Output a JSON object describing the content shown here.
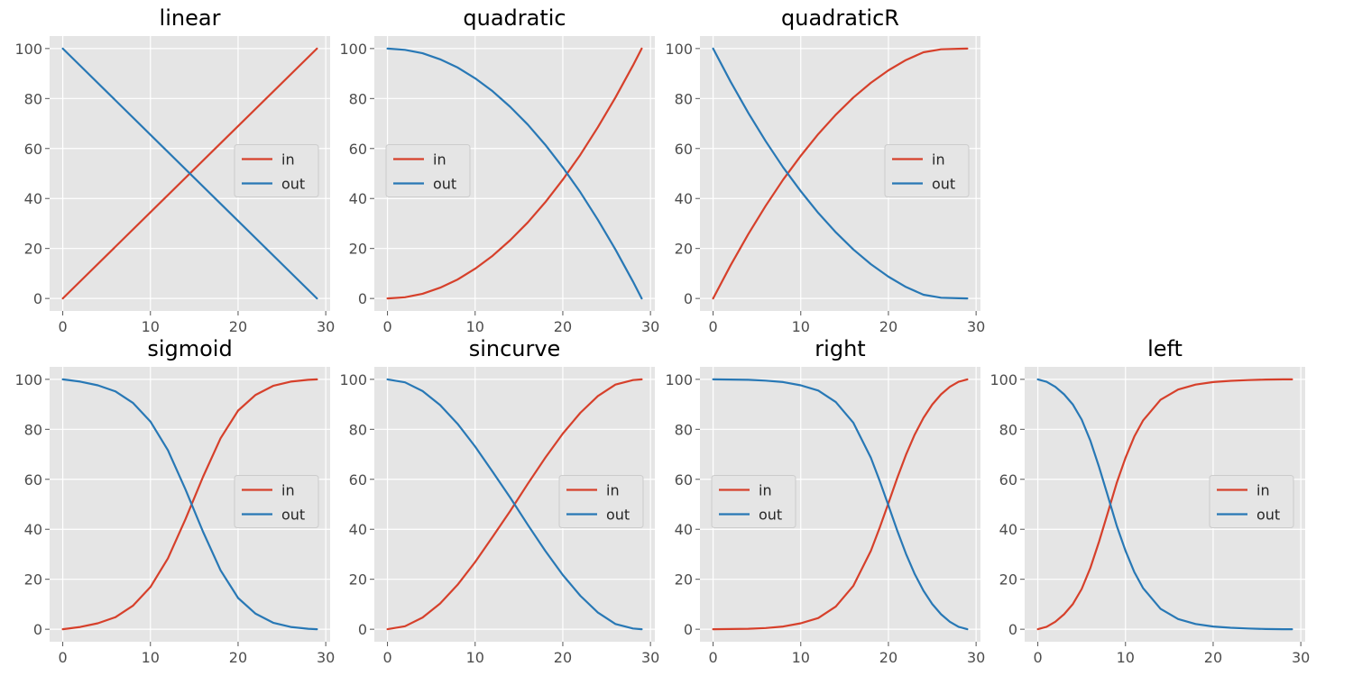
{
  "figure": {
    "colors": {
      "in": "#d6402b",
      "out": "#2878b5",
      "background": "#e5e5e5",
      "grid": "#ffffff"
    }
  },
  "chart_data": [
    {
      "type": "line",
      "title": "linear",
      "xlim": [
        -1.5,
        30.5
      ],
      "ylim": [
        -5,
        105
      ],
      "xticks": [
        0,
        10,
        20,
        30
      ],
      "yticks": [
        0,
        20,
        40,
        60,
        80,
        100
      ],
      "grid": true,
      "legend_position": "center-right",
      "series": [
        {
          "name": "in",
          "color": "#d6402b",
          "x": [
            0,
            29
          ],
          "y": [
            0,
            100
          ]
        },
        {
          "name": "out",
          "color": "#2878b5",
          "x": [
            0,
            29
          ],
          "y": [
            100,
            0
          ]
        }
      ]
    },
    {
      "type": "line",
      "title": "quadratic",
      "xlim": [
        -1.5,
        30.5
      ],
      "ylim": [
        -5,
        105
      ],
      "xticks": [
        0,
        10,
        20,
        30
      ],
      "yticks": [
        0,
        20,
        40,
        60,
        80,
        100
      ],
      "grid": true,
      "legend_position": "center-left",
      "series": [
        {
          "name": "in",
          "color": "#d6402b",
          "x": [
            0,
            2,
            4,
            6,
            8,
            10,
            12,
            14,
            16,
            18,
            20,
            22,
            24,
            26,
            28,
            29
          ],
          "y": [
            0,
            0.5,
            1.9,
            4.3,
            7.6,
            11.9,
            17.1,
            23.3,
            30.4,
            38.5,
            47.6,
            57.5,
            68.5,
            80.4,
            93.2,
            100
          ]
        },
        {
          "name": "out",
          "color": "#2878b5",
          "x": [
            0,
            2,
            4,
            6,
            8,
            10,
            12,
            14,
            16,
            18,
            20,
            22,
            24,
            26,
            28,
            29
          ],
          "y": [
            100,
            99.5,
            98.1,
            95.7,
            92.4,
            88.1,
            82.9,
            76.7,
            69.6,
            61.5,
            52.4,
            42.5,
            31.5,
            19.6,
            6.8,
            0
          ]
        }
      ]
    },
    {
      "type": "line",
      "title": "quadraticR",
      "xlim": [
        -1.5,
        30.5
      ],
      "ylim": [
        -5,
        105
      ],
      "xticks": [
        0,
        10,
        20,
        30
      ],
      "yticks": [
        0,
        20,
        40,
        60,
        80,
        100
      ],
      "grid": true,
      "legend_position": "center-right",
      "series": [
        {
          "name": "in",
          "color": "#d6402b",
          "x": [
            0,
            2,
            4,
            6,
            8,
            10,
            12,
            14,
            16,
            18,
            20,
            22,
            24,
            26,
            28,
            29
          ],
          "y": [
            0,
            13.3,
            25.7,
            37.1,
            47.6,
            57.1,
            65.8,
            73.5,
            80.4,
            86.3,
            91.3,
            95.4,
            98.5,
            99.7,
            99.9,
            100
          ]
        },
        {
          "name": "out",
          "color": "#2878b5",
          "x": [
            0,
            2,
            4,
            6,
            8,
            10,
            12,
            14,
            16,
            18,
            20,
            22,
            24,
            26,
            28,
            29
          ],
          "y": [
            100,
            86.7,
            74.3,
            62.9,
            52.4,
            42.9,
            34.2,
            26.5,
            19.6,
            13.7,
            8.7,
            4.6,
            1.5,
            0.3,
            0.1,
            0
          ]
        }
      ]
    },
    {
      "type": "line",
      "title": "sigmoid",
      "xlim": [
        -1.5,
        30.5
      ],
      "ylim": [
        -5,
        105
      ],
      "xticks": [
        0,
        10,
        20,
        30
      ],
      "yticks": [
        0,
        20,
        40,
        60,
        80,
        100
      ],
      "grid": true,
      "legend_position": "center-right",
      "series": [
        {
          "name": "in",
          "color": "#d6402b",
          "x": [
            0,
            2,
            4,
            6,
            8,
            10,
            12,
            14,
            16,
            18,
            20,
            22,
            24,
            26,
            28,
            29
          ],
          "y": [
            0,
            0.9,
            2.4,
            4.8,
            9.4,
            16.9,
            28.4,
            44,
            61,
            76.4,
            87.5,
            93.8,
            97.4,
            99.1,
            99.8,
            100
          ]
        },
        {
          "name": "out",
          "color": "#2878b5",
          "x": [
            0,
            2,
            4,
            6,
            8,
            10,
            12,
            14,
            16,
            18,
            20,
            22,
            24,
            26,
            28,
            29
          ],
          "y": [
            100,
            99.1,
            97.6,
            95.2,
            90.6,
            83.1,
            71.6,
            56,
            39,
            23.6,
            12.5,
            6.2,
            2.6,
            0.9,
            0.2,
            0
          ]
        }
      ]
    },
    {
      "type": "line",
      "title": "sincurve",
      "xlim": [
        -1.5,
        30.5
      ],
      "ylim": [
        -5,
        105
      ],
      "xticks": [
        0,
        10,
        20,
        30
      ],
      "yticks": [
        0,
        20,
        40,
        60,
        80,
        100
      ],
      "grid": true,
      "legend_position": "center-right",
      "series": [
        {
          "name": "in",
          "color": "#d6402b",
          "x": [
            0,
            2,
            4,
            6,
            8,
            10,
            12,
            14,
            16,
            18,
            20,
            22,
            24,
            26,
            28,
            29
          ],
          "y": [
            0,
            1.2,
            4.7,
            10.3,
            17.8,
            26.9,
            37,
            47.3,
            58.2,
            68.6,
            78.3,
            86.6,
            93.3,
            97.9,
            99.7,
            100
          ]
        },
        {
          "name": "out",
          "color": "#2878b5",
          "x": [
            0,
            2,
            4,
            6,
            8,
            10,
            12,
            14,
            16,
            18,
            20,
            22,
            24,
            26,
            28,
            29
          ],
          "y": [
            100,
            98.8,
            95.3,
            89.7,
            82.2,
            73.1,
            63,
            52.7,
            41.8,
            31.4,
            21.7,
            13.4,
            6.7,
            2.1,
            0.3,
            0
          ]
        }
      ]
    },
    {
      "type": "line",
      "title": "right",
      "xlim": [
        -1.5,
        30.5
      ],
      "ylim": [
        -5,
        105
      ],
      "xticks": [
        0,
        10,
        20,
        30
      ],
      "yticks": [
        0,
        20,
        40,
        60,
        80,
        100
      ],
      "grid": true,
      "legend_position": "center-left",
      "series": [
        {
          "name": "in",
          "color": "#d6402b",
          "x": [
            0,
            2,
            4,
            6,
            8,
            10,
            12,
            14,
            16,
            18,
            19,
            20,
            21,
            22,
            23,
            24,
            25,
            26,
            27,
            28,
            29
          ],
          "y": [
            0,
            0.1,
            0.2,
            0.5,
            1.1,
            2.4,
            4.5,
            9.1,
            17.4,
            31.4,
            40.6,
            50.5,
            60.5,
            69.8,
            77.9,
            84.6,
            89.9,
            94,
            97,
            99,
            100
          ]
        },
        {
          "name": "out",
          "color": "#2878b5",
          "x": [
            0,
            2,
            4,
            6,
            8,
            10,
            12,
            14,
            16,
            18,
            19,
            20,
            21,
            22,
            23,
            24,
            25,
            26,
            27,
            28,
            29
          ],
          "y": [
            100,
            99.9,
            99.8,
            99.5,
            98.9,
            97.6,
            95.5,
            90.9,
            82.6,
            68.6,
            59.4,
            49.5,
            39.5,
            30.2,
            22.1,
            15.4,
            10.1,
            6,
            3,
            1,
            0
          ]
        }
      ]
    },
    {
      "type": "line",
      "title": "left",
      "xlim": [
        -1.5,
        30.5
      ],
      "ylim": [
        -5,
        105
      ],
      "xticks": [
        0,
        10,
        20,
        30
      ],
      "yticks": [
        0,
        20,
        40,
        60,
        80,
        100
      ],
      "grid": true,
      "legend_position": "center-right",
      "series": [
        {
          "name": "in",
          "color": "#d6402b",
          "x": [
            0,
            1,
            2,
            3,
            4,
            5,
            6,
            7,
            8,
            9,
            10,
            11,
            12,
            14,
            16,
            18,
            20,
            22,
            24,
            26,
            28,
            29
          ],
          "y": [
            0,
            1,
            3,
            6,
            10.1,
            16.1,
            24.6,
            35.2,
            46.8,
            58.5,
            68.6,
            77.1,
            83.5,
            91.8,
            95.9,
            97.9,
            98.9,
            99.4,
            99.7,
            99.9,
            100,
            100
          ]
        },
        {
          "name": "out",
          "color": "#2878b5",
          "x": [
            0,
            1,
            2,
            3,
            4,
            5,
            6,
            7,
            8,
            9,
            10,
            11,
            12,
            14,
            16,
            18,
            20,
            22,
            24,
            26,
            28,
            29
          ],
          "y": [
            100,
            99,
            97,
            94,
            89.9,
            83.9,
            75.4,
            64.8,
            53.2,
            41.5,
            31.4,
            22.9,
            16.5,
            8.2,
            4.1,
            2.1,
            1.1,
            0.6,
            0.3,
            0.1,
            0,
            0
          ]
        }
      ]
    }
  ]
}
